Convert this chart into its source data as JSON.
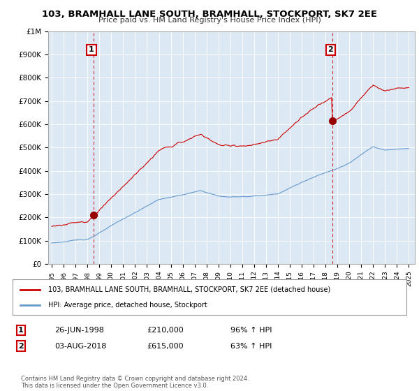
{
  "title": "103, BRAMHALL LANE SOUTH, BRAMHALL, STOCKPORT, SK7 2EE",
  "subtitle": "Price paid vs. HM Land Registry's House Price Index (HPI)",
  "ylim": [
    0,
    1000000
  ],
  "yticks": [
    0,
    100000,
    200000,
    300000,
    400000,
    500000,
    600000,
    700000,
    800000,
    900000,
    1000000
  ],
  "ytick_labels": [
    "£0",
    "£100K",
    "£200K",
    "£300K",
    "£400K",
    "£500K",
    "£600K",
    "£700K",
    "£800K",
    "£900K",
    "£1M"
  ],
  "red_line_color": "#cc0000",
  "blue_line_color": "#6699cc",
  "chart_bg_color": "#dce9f5",
  "marker_color": "#990000",
  "sale1_year": 1998.49,
  "sale1_price": 210000,
  "sale2_year": 2018.58,
  "sale2_price": 615000,
  "legend_red": "103, BRAMHALL LANE SOUTH, BRAMHALL, STOCKPORT, SK7 2EE (detached house)",
  "legend_blue": "HPI: Average price, detached house, Stockport",
  "ann1_label": "1",
  "ann1_date": "26-JUN-1998",
  "ann1_price": "£210,000",
  "ann1_hpi": "96% ↑ HPI",
  "ann2_label": "2",
  "ann2_date": "03-AUG-2018",
  "ann2_price": "£615,000",
  "ann2_hpi": "63% ↑ HPI",
  "footnote": "Contains HM Land Registry data © Crown copyright and database right 2024.\nThis data is licensed under the Open Government Licence v3.0.",
  "background_color": "#ffffff",
  "grid_color": "#ffffff"
}
